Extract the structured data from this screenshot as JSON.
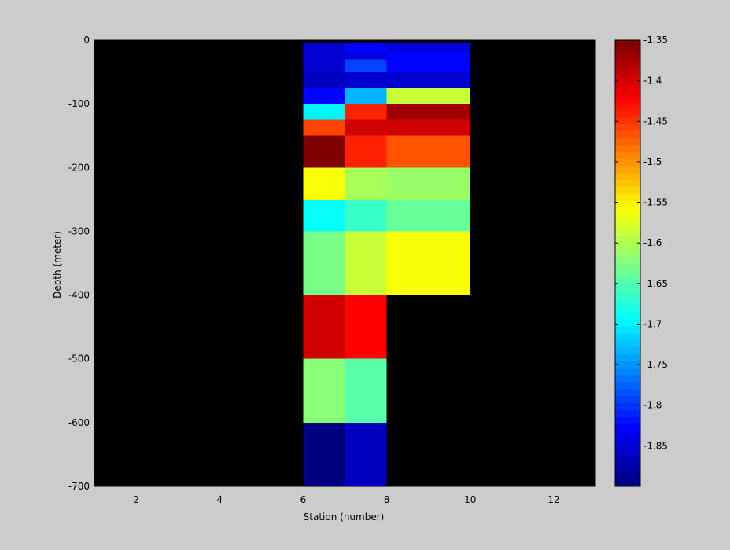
{
  "chart_data": {
    "type": "heatmap",
    "title": "",
    "xlabel": "Station (number)",
    "ylabel": "Depth (meter)",
    "xlim": [
      1,
      13
    ],
    "ylim": [
      -700,
      0
    ],
    "xticks": [
      2,
      4,
      6,
      8,
      10,
      12
    ],
    "yticks": [
      0,
      -100,
      -200,
      -300,
      -400,
      -500,
      -600,
      -700
    ],
    "missing_color": "#000000",
    "colorbar": {
      "colormap": "jet",
      "clim": [
        -1.9,
        -1.35
      ],
      "ticks": [
        -1.35,
        -1.4,
        -1.45,
        -1.5,
        -1.55,
        -1.6,
        -1.65,
        -1.7,
        -1.75,
        -1.8,
        -1.85
      ]
    },
    "cells": [
      {
        "x": [
          6,
          7
        ],
        "y": [
          -5,
          -30
        ],
        "value": -1.85
      },
      {
        "x": [
          6,
          7
        ],
        "y": [
          -30,
          -50
        ],
        "value": -1.85
      },
      {
        "x": [
          6,
          7
        ],
        "y": [
          -50,
          -75
        ],
        "value": -1.86
      },
      {
        "x": [
          6,
          7
        ],
        "y": [
          -75,
          -100
        ],
        "value": -1.83
      },
      {
        "x": [
          6,
          7
        ],
        "y": [
          -100,
          -125
        ],
        "value": -1.7
      },
      {
        "x": [
          6,
          7
        ],
        "y": [
          -125,
          -150
        ],
        "value": -1.46
      },
      {
        "x": [
          6,
          7
        ],
        "y": [
          -150,
          -200
        ],
        "value": -1.35
      },
      {
        "x": [
          6,
          7
        ],
        "y": [
          -200,
          -250
        ],
        "value": -1.56
      },
      {
        "x": [
          6,
          7
        ],
        "y": [
          -250,
          -300
        ],
        "value": -1.69
      },
      {
        "x": [
          6,
          7
        ],
        "y": [
          -300,
          -400
        ],
        "value": -1.63
      },
      {
        "x": [
          6,
          7
        ],
        "y": [
          -400,
          -500
        ],
        "value": -1.4
      },
      {
        "x": [
          6,
          7
        ],
        "y": [
          -500,
          -600
        ],
        "value": -1.62
      },
      {
        "x": [
          6,
          7
        ],
        "y": [
          -600,
          -700
        ],
        "value": -1.9
      },
      {
        "x": [
          7,
          8
        ],
        "y": [
          -5,
          -20
        ],
        "value": -1.83
      },
      {
        "x": [
          7,
          8
        ],
        "y": [
          -20,
          -30
        ],
        "value": -1.84
      },
      {
        "x": [
          7,
          8
        ],
        "y": [
          -30,
          -50
        ],
        "value": -1.79
      },
      {
        "x": [
          7,
          8
        ],
        "y": [
          -50,
          -75
        ],
        "value": -1.85
      },
      {
        "x": [
          7,
          8
        ],
        "y": [
          -75,
          -100
        ],
        "value": -1.73
      },
      {
        "x": [
          7,
          8
        ],
        "y": [
          -100,
          -125
        ],
        "value": -1.44
      },
      {
        "x": [
          7,
          8
        ],
        "y": [
          -125,
          -150
        ],
        "value": -1.4
      },
      {
        "x": [
          7,
          8
        ],
        "y": [
          -150,
          -200
        ],
        "value": -1.44
      },
      {
        "x": [
          7,
          8
        ],
        "y": [
          -200,
          -250
        ],
        "value": -1.6
      },
      {
        "x": [
          7,
          8
        ],
        "y": [
          -250,
          -300
        ],
        "value": -1.66
      },
      {
        "x": [
          7,
          8
        ],
        "y": [
          -300,
          -400
        ],
        "value": -1.59
      },
      {
        "x": [
          7,
          8
        ],
        "y": [
          -400,
          -500
        ],
        "value": -1.42
      },
      {
        "x": [
          7,
          8
        ],
        "y": [
          -500,
          -600
        ],
        "value": -1.65
      },
      {
        "x": [
          7,
          8
        ],
        "y": [
          -600,
          -700
        ],
        "value": -1.86
      },
      {
        "x": [
          8,
          10
        ],
        "y": [
          -5,
          -20
        ],
        "value": -1.84
      },
      {
        "x": [
          8,
          10
        ],
        "y": [
          -20,
          -30
        ],
        "value": -1.83
      },
      {
        "x": [
          8,
          10
        ],
        "y": [
          -30,
          -50
        ],
        "value": -1.83
      },
      {
        "x": [
          8,
          10
        ],
        "y": [
          -50,
          -75
        ],
        "value": -1.85
      },
      {
        "x": [
          8,
          10
        ],
        "y": [
          -75,
          -100
        ],
        "value": -1.59
      },
      {
        "x": [
          8,
          10
        ],
        "y": [
          -100,
          -125
        ],
        "value": -1.37
      },
      {
        "x": [
          8,
          10
        ],
        "y": [
          -125,
          -150
        ],
        "value": -1.4
      },
      {
        "x": [
          8,
          10
        ],
        "y": [
          -150,
          -200
        ],
        "value": -1.47
      },
      {
        "x": [
          8,
          10
        ],
        "y": [
          -200,
          -250
        ],
        "value": -1.61
      },
      {
        "x": [
          8,
          10
        ],
        "y": [
          -250,
          -300
        ],
        "value": -1.64
      },
      {
        "x": [
          8,
          10
        ],
        "y": [
          -300,
          -400
        ],
        "value": -1.56
      }
    ]
  }
}
